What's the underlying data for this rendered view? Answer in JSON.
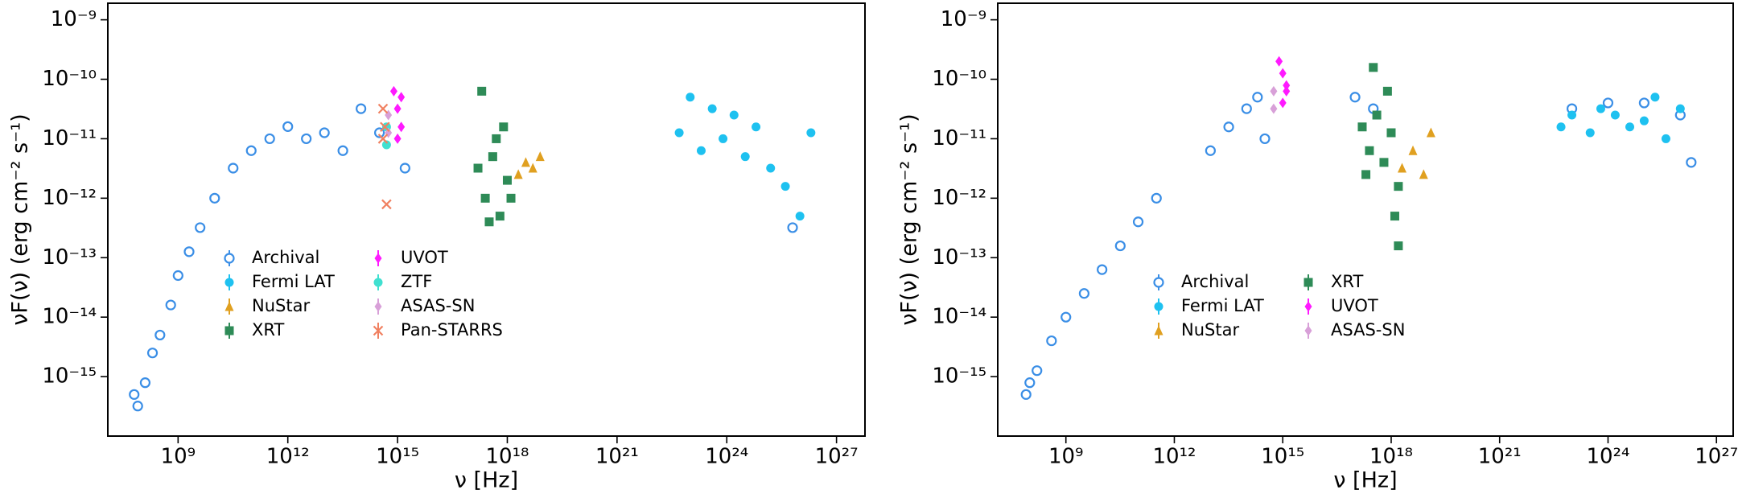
{
  "chart_data": [
    {
      "type": "scatter",
      "log_x": true,
      "log_y": true,
      "xlabel": "ν [Hz]",
      "ylabel": "νF(ν) (erg cm⁻² s⁻¹)",
      "xlim": [
        12000000.0,
        6e+27
      ],
      "ylim": [
        1e-16,
        1.9e-09
      ],
      "xticks": [
        {
          "value": 1000000000.0,
          "label": "10⁹"
        },
        {
          "value": 1000000000000.0,
          "label": "10¹²"
        },
        {
          "value": 1000000000000000.0,
          "label": "10¹⁵"
        },
        {
          "value": 1e+18,
          "label": "10¹⁸"
        },
        {
          "value": 1e+21,
          "label": "10²¹"
        },
        {
          "value": 1e+24,
          "label": "10²⁴"
        },
        {
          "value": 1e+27,
          "label": "10²⁷"
        }
      ],
      "yticks": [
        {
          "value": 1e-15,
          "label": "10⁻¹⁵"
        },
        {
          "value": 1e-14,
          "label": "10⁻¹⁴"
        },
        {
          "value": 1e-13,
          "label": "10⁻¹³"
        },
        {
          "value": 1e-12,
          "label": "10⁻¹²"
        },
        {
          "value": 1e-11,
          "label": "10⁻¹¹"
        },
        {
          "value": 1e-10,
          "label": "10⁻¹⁰"
        },
        {
          "value": 1e-09,
          "label": "10⁻⁹"
        }
      ],
      "series": [
        {
          "name": "Archival",
          "color": "#3a8ee6",
          "marker": "open-circle",
          "x": [
            63000000.0,
            79000000.0,
            126000000.0,
            200000000.0,
            320000000.0,
            630000000.0,
            1000000000.0,
            2000000000.0,
            4000000000.0,
            10000000000.0,
            32000000000.0,
            100000000000.0,
            320000000000.0,
            1000000000000.0,
            3200000000000.0,
            10000000000000.0,
            32000000000000.0,
            100000000000000.0,
            320000000000000.0,
            1600000000000000.0,
            6.3e+25
          ],
          "values": [
            5e-16,
            3.2e-16,
            7.9e-16,
            2.5e-15,
            5e-15,
            1.6e-14,
            5e-14,
            1.26e-13,
            3.2e-13,
            1e-12,
            3.2e-12,
            6.3e-12,
            1e-11,
            1.6e-11,
            1e-11,
            1.26e-11,
            6.3e-12,
            3.2e-11,
            1.26e-11,
            3.2e-12,
            3.2e-13
          ]
        },
        {
          "name": "Fermi LAT",
          "color": "#1ec1f0",
          "marker": "circle",
          "x": [
            5e+22,
            1e+23,
            2e+23,
            4e+23,
            7.9e+23,
            1.58e+24,
            3.2e+24,
            6.3e+24,
            1.58e+25,
            4e+25,
            1e+26,
            2e+26
          ],
          "values": [
            1.26e-11,
            5e-11,
            6.3e-12,
            3.2e-11,
            1e-11,
            2.5e-11,
            5e-12,
            1.58e-11,
            3.2e-12,
            1.58e-12,
            5e-13,
            1.26e-11
          ]
        },
        {
          "name": "NuStar",
          "color": "#e0a020",
          "marker": "triangle",
          "x": [
            2e+18,
            3.2e+18,
            5e+18,
            7.9e+18
          ],
          "values": [
            2.5e-12,
            4e-12,
            3.2e-12,
            5e-12
          ]
        },
        {
          "name": "XRT",
          "color": "#2e8b57",
          "marker": "square",
          "x": [
            1.58e+17,
            2.5e+17,
            4e+17,
            6.3e+17,
            1e+18,
            2e+17,
            7.9e+17,
            1.26e+18,
            3.2e+17,
            5e+17
          ],
          "values": [
            3.2e-12,
            1e-12,
            5e-12,
            5e-13,
            2e-12,
            6.3e-11,
            1.58e-11,
            1e-12,
            4e-13,
            1e-11
          ]
        },
        {
          "name": "UVOT",
          "color": "#ff1aff",
          "marker": "diamond",
          "x": [
            790000000000000.0,
            1000000000000000.0,
            1260000000000000.0,
            1000000000000000.0,
            1260000000000000.0
          ],
          "values": [
            6.3e-11,
            3.2e-11,
            1.58e-11,
            1e-11,
            5e-11
          ]
        },
        {
          "name": "ZTF",
          "color": "#40e0d0",
          "marker": "circle",
          "x": [
            500000000000000.0,
            500000000000000.0
          ],
          "values": [
            1.58e-11,
            7.9e-12
          ]
        },
        {
          "name": "ASAS-SN",
          "color": "#d8a0d8",
          "marker": "diamond",
          "x": [
            560000000000000.0,
            560000000000000.0
          ],
          "values": [
            2.5e-11,
            1.26e-11
          ]
        },
        {
          "name": "Pan-STARRS",
          "color": "#f08060",
          "marker": "x",
          "x": [
            400000000000000.0,
            450000000000000.0,
            500000000000000.0,
            400000000000000.0
          ],
          "values": [
            3.2e-11,
            1.58e-11,
            7.9e-13,
            1e-11
          ]
        }
      ]
    },
    {
      "type": "scatter",
      "log_x": true,
      "log_y": true,
      "xlabel": "ν [Hz]",
      "ylabel": "νF(ν) (erg cm⁻² s⁻¹)",
      "xlim": [
        13000000.0,
        2.9e+27
      ],
      "ylim": [
        1e-16,
        1.9e-09
      ],
      "xticks": [
        {
          "value": 1000000000.0,
          "label": "10⁹"
        },
        {
          "value": 1000000000000.0,
          "label": "10¹²"
        },
        {
          "value": 1000000000000000.0,
          "label": "10¹⁵"
        },
        {
          "value": 1e+18,
          "label": "10¹⁸"
        },
        {
          "value": 1e+21,
          "label": "10²¹"
        },
        {
          "value": 1e+24,
          "label": "10²⁴"
        },
        {
          "value": 1e+27,
          "label": "10²⁷"
        }
      ],
      "yticks": [
        {
          "value": 1e-15,
          "label": "10⁻¹⁵"
        },
        {
          "value": 1e-14,
          "label": "10⁻¹⁴"
        },
        {
          "value": 1e-13,
          "label": "10⁻¹³"
        },
        {
          "value": 1e-12,
          "label": "10⁻¹²"
        },
        {
          "value": 1e-11,
          "label": "10⁻¹¹"
        },
        {
          "value": 1e-10,
          "label": "10⁻¹⁰"
        },
        {
          "value": 1e-09,
          "label": "10⁻⁹"
        }
      ],
      "series": [
        {
          "name": "Archival",
          "color": "#3a8ee6",
          "marker": "open-circle",
          "x": [
            79000000.0,
            100000000.0,
            158000000.0,
            400000000.0,
            1000000000.0,
            3200000000.0,
            10000000000.0,
            32000000000.0,
            100000000000.0,
            320000000000.0,
            10000000000000.0,
            32000000000000.0,
            100000000000000.0,
            200000000000000.0,
            320000000000000.0,
            1e+17,
            3.2e+17,
            1e+23,
            1e+24,
            1e+25,
            1e+26,
            2e+26
          ],
          "values": [
            5e-16,
            7.9e-16,
            1.26e-15,
            4e-15,
            1e-14,
            2.5e-14,
            6.3e-14,
            1.58e-13,
            4e-13,
            1e-12,
            6.3e-12,
            1.58e-11,
            3.2e-11,
            5e-11,
            1e-11,
            5e-11,
            3.2e-11,
            3.2e-11,
            4e-11,
            4e-11,
            2.5e-11,
            4e-12
          ]
        },
        {
          "name": "Fermi LAT",
          "color": "#1ec1f0",
          "marker": "circle",
          "x": [
            5e+22,
            1e+23,
            3.2e+23,
            6.3e+23,
            1.58e+24,
            4e+24,
            1e+25,
            2e+25,
            4e+25,
            1e+26
          ],
          "values": [
            1.58e-11,
            2.5e-11,
            1.26e-11,
            3.2e-11,
            2.5e-11,
            1.58e-11,
            2e-11,
            5e-11,
            1e-11,
            3.2e-11
          ]
        },
        {
          "name": "NuStar",
          "color": "#e0a020",
          "marker": "triangle",
          "x": [
            2e+18,
            4e+18,
            7.9e+18,
            1.26e+19
          ],
          "values": [
            3.2e-12,
            6.3e-12,
            2.5e-12,
            1.26e-11
          ]
        },
        {
          "name": "XRT",
          "color": "#2e8b57",
          "marker": "square",
          "x": [
            1.58e+17,
            2.5e+17,
            4e+17,
            6.3e+17,
            1e+18,
            1.58e+18,
            3.2e+17,
            1.26e+18,
            2e+17,
            7.9e+17,
            1.58e+18
          ],
          "values": [
            1.58e-11,
            6.3e-12,
            2.5e-11,
            4e-12,
            1.26e-11,
            1.58e-12,
            1.58e-10,
            5e-13,
            2.5e-12,
            6.3e-11,
            1.58e-13
          ]
        },
        {
          "name": "UVOT",
          "color": "#ff1aff",
          "marker": "diamond",
          "x": [
            790000000000000.0,
            1000000000000000.0,
            1260000000000000.0,
            1000000000000000.0,
            1260000000000000.0
          ],
          "values": [
            2e-10,
            1.26e-10,
            7.9e-11,
            4e-11,
            6.3e-11
          ]
        },
        {
          "name": "ASAS-SN",
          "color": "#d8a0d8",
          "marker": "diamond",
          "x": [
            560000000000000.0,
            560000000000000.0
          ],
          "values": [
            6.3e-11,
            3.2e-11
          ]
        }
      ]
    }
  ]
}
